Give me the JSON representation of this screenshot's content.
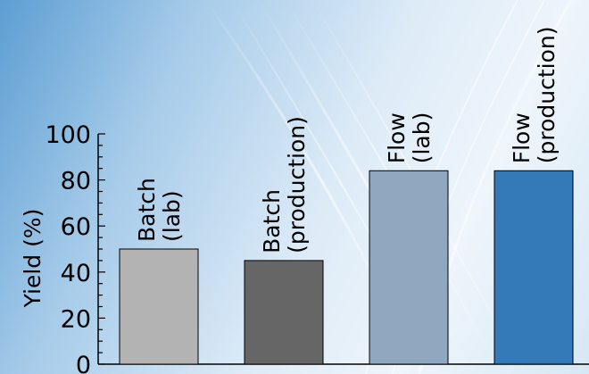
{
  "chart_data": {
    "type": "bar",
    "title": "",
    "xlabel": "",
    "ylabel": "Yield (%)",
    "ylim": [
      0,
      100
    ],
    "yticks": [
      0,
      20,
      40,
      60,
      80,
      100
    ],
    "grid": false,
    "legend": "none",
    "categories": [
      [
        "Batch",
        "(lab)"
      ],
      [
        "Batch",
        "(production)"
      ],
      [
        "Flow",
        "(lab)"
      ],
      [
        "Flow",
        "(production)"
      ]
    ],
    "values": [
      50,
      45,
      84,
      84
    ],
    "colors": [
      "#b3b3b3",
      "#666666",
      "#8fa7bf",
      "#3479b8"
    ]
  }
}
